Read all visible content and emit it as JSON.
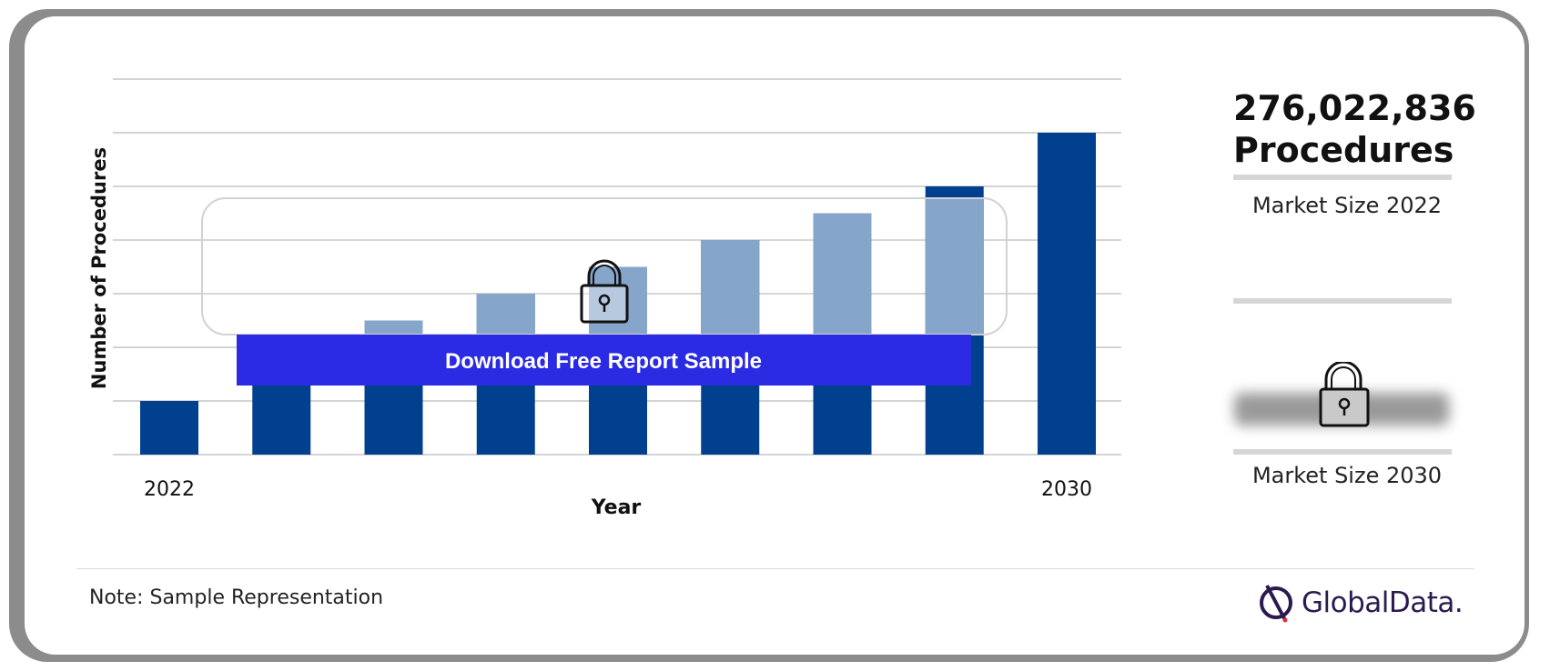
{
  "chart_data": {
    "type": "bar",
    "categories": [
      "2022",
      "",
      "",
      "",
      "",
      "",
      "",
      "",
      "2030"
    ],
    "values": [
      1,
      2,
      2.5,
      3,
      3.5,
      4,
      4.5,
      5,
      6
    ],
    "unlocked_values": [
      1,
      null,
      null,
      null,
      null,
      null,
      null,
      5,
      6
    ],
    "xlabel": "Year",
    "ylabel": "Number of Procedures",
    "ylim": [
      0,
      7
    ],
    "grid": true,
    "colors": {
      "bar": "#00408f",
      "bar_faded": "#7fa1c8",
      "grid": "#d4d4d4"
    }
  },
  "overlay": {
    "cta_label": "Download Free Report Sample",
    "cta_color": "#2b2be3",
    "lock_icon": "padlock-icon"
  },
  "kpi": {
    "value_2022": "276,022,836",
    "unit": "Procedures",
    "label_2022": "Market Size 2022",
    "label_2030": "Market Size 2030"
  },
  "footer": {
    "note": "Note: Sample Representation",
    "brand": "GlobalData."
  }
}
